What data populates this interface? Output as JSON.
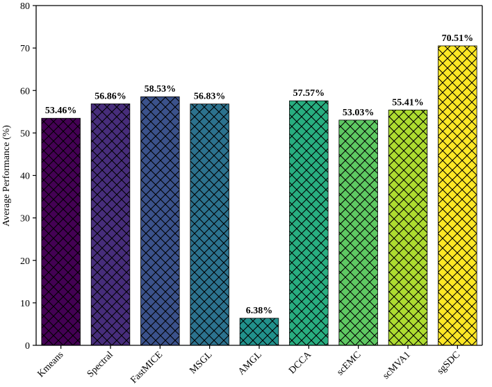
{
  "chart_data": {
    "type": "bar",
    "title": "",
    "xlabel": "",
    "ylabel": "Average Performance (%)",
    "ylim": [
      0,
      80
    ],
    "yticks": [
      0,
      10,
      20,
      30,
      40,
      50,
      60,
      70,
      80
    ],
    "categories": [
      "Kmeans",
      "Spectral",
      "FastMICE",
      "MSGL",
      "AMGL",
      "DCCA",
      "scEMC",
      "scMVA1",
      "sgSDC"
    ],
    "values": [
      53.46,
      56.86,
      58.53,
      56.83,
      6.38,
      57.57,
      53.03,
      55.41,
      70.51
    ],
    "data_labels": [
      "53.46%",
      "56.86%",
      "58.53%",
      "56.83%",
      "6.38%",
      "57.57%",
      "53.03%",
      "55.41%",
      "70.51%"
    ],
    "colors": [
      "#440154",
      "#472d7b",
      "#3b528b",
      "#2c728e",
      "#21918c",
      "#28ae80",
      "#5ec962",
      "#addc30",
      "#fde725"
    ],
    "hatch": "crosshatch",
    "grid": false,
    "legend": "none"
  }
}
